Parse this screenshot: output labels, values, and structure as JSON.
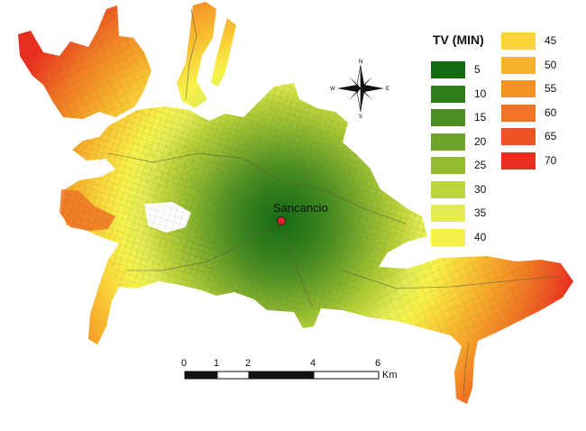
{
  "legend": {
    "title": "TV (MIN)",
    "classes": [
      {
        "label": "5",
        "color": "#156b12"
      },
      {
        "label": "10",
        "color": "#2e7d1b"
      },
      {
        "label": "15",
        "color": "#4c8e22"
      },
      {
        "label": "20",
        "color": "#6ea42a"
      },
      {
        "label": "25",
        "color": "#94bb31"
      },
      {
        "label": "30",
        "color": "#bdd33a"
      },
      {
        "label": "35",
        "color": "#e3ec54"
      },
      {
        "label": "40",
        "color": "#f7f24a"
      },
      {
        "label": "45",
        "color": "#f9d43a"
      },
      {
        "label": "50",
        "color": "#f7b32d"
      },
      {
        "label": "55",
        "color": "#f49427"
      },
      {
        "label": "60",
        "color": "#f07424"
      },
      {
        "label": "65",
        "color": "#ec5322"
      },
      {
        "label": "70",
        "color": "#e92e20"
      }
    ]
  },
  "place": {
    "name": "Sancancio",
    "marker_color": "#e8202a"
  },
  "compass": {
    "n": "N",
    "s": "S",
    "e": "E",
    "w": "W"
  },
  "scalebar": {
    "ticks": [
      "0",
      "1",
      "2",
      "4",
      "6"
    ],
    "unit": "Km"
  }
}
